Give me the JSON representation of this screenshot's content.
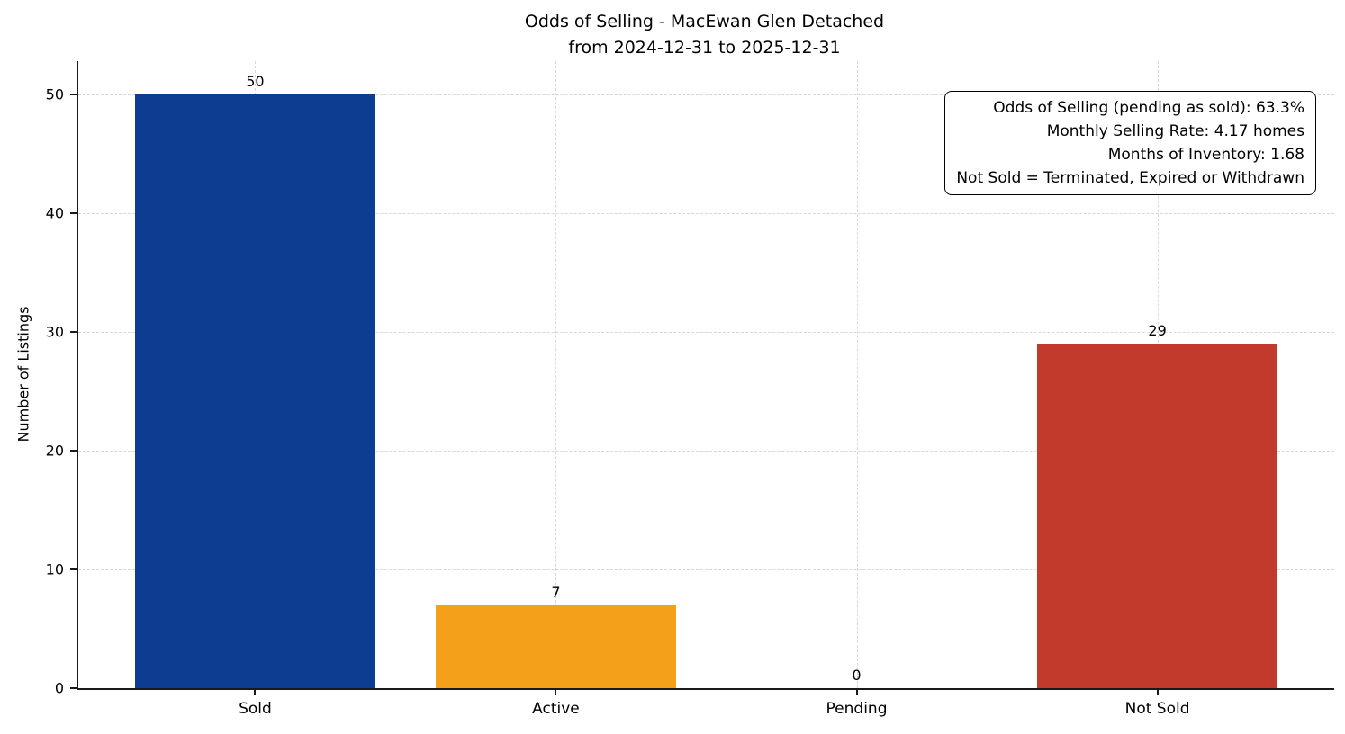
{
  "figure": {
    "title_line1": "Odds of Selling - MacEwan Glen Detached",
    "title_line2": "from 2024-12-31 to 2025-12-31"
  },
  "chart_data": {
    "type": "bar",
    "title": "Odds of Selling - MacEwan Glen Detached\nfrom 2024-12-31 to 2025-12-31",
    "categories": [
      "Sold",
      "Active",
      "Pending",
      "Not Sold"
    ],
    "values": [
      50,
      7,
      0,
      29
    ],
    "value_labels": [
      "50",
      "7",
      "0",
      "29"
    ],
    "bar_colors": [
      "#0d3d91",
      "#f5a01b",
      null,
      "#c23a2c"
    ],
    "xlabel": "",
    "ylabel": "Number of Listings",
    "yticks": [
      0,
      10,
      20,
      30,
      40,
      50
    ],
    "ylim": [
      0,
      52.8
    ],
    "grid": {
      "style": "dashed",
      "horizontal": true,
      "vertical": true,
      "color": "#d8d8d8"
    },
    "legend": "none",
    "annotation": {
      "position": "top-right",
      "align": "right",
      "lines": [
        "Odds of Selling (pending as sold): 63.3%",
        "Monthly Selling Rate: 4.17 homes",
        "Months of Inventory: 1.68",
        "Not Sold = Terminated, Expired or Withdrawn"
      ]
    },
    "colors": {
      "background": "#ffffff",
      "axis": "#1a1a1a",
      "text": "#000000",
      "grid": "#d8d8d8"
    }
  },
  "stats": {
    "odds_of_selling_pending_as_sold_pct": 63.3,
    "monthly_selling_rate_homes": 4.17,
    "months_of_inventory": 1.68
  }
}
